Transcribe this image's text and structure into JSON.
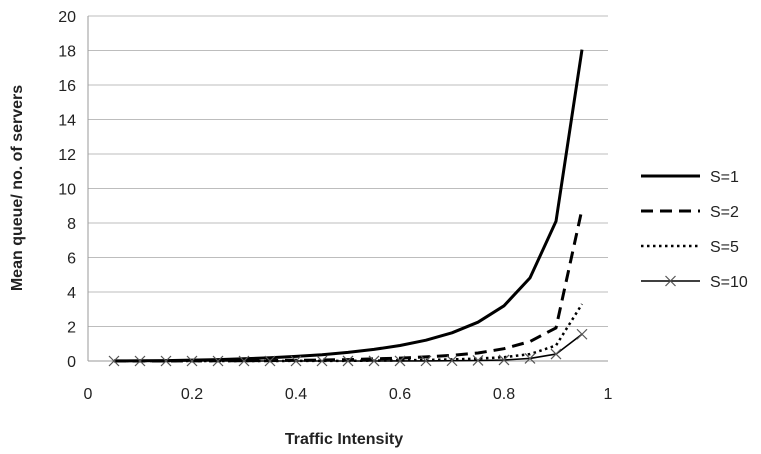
{
  "chart_data": {
    "type": "line",
    "xlabel": "Traffic Intensity",
    "ylabel": "Mean queue/ no. of servers",
    "xlim": [
      0,
      1
    ],
    "ylim": [
      0,
      20
    ],
    "xticks": [
      "0",
      "0.2",
      "0.4",
      "0.6",
      "0.8",
      "1"
    ],
    "xtick_values": [
      0,
      0.2,
      0.4,
      0.6,
      0.8,
      1
    ],
    "yticks": [
      "0",
      "2",
      "4",
      "6",
      "8",
      "10",
      "12",
      "14",
      "16",
      "18",
      "20"
    ],
    "ytick_values": [
      0,
      2,
      4,
      6,
      8,
      10,
      12,
      14,
      16,
      18,
      20
    ],
    "grid": "horizontal",
    "legend_position": "right",
    "x": [
      0.05,
      0.1,
      0.15,
      0.2,
      0.25,
      0.3,
      0.35,
      0.4,
      0.45,
      0.5,
      0.55,
      0.6,
      0.65,
      0.7,
      0.75,
      0.8,
      0.85,
      0.9,
      0.95
    ],
    "series": [
      {
        "name": "S=1",
        "style": "solid",
        "color": "#000000",
        "values": [
          0.003,
          0.011,
          0.026,
          0.05,
          0.083,
          0.129,
          0.188,
          0.267,
          0.368,
          0.5,
          0.672,
          0.9,
          1.207,
          1.633,
          2.25,
          3.2,
          4.817,
          8.1,
          18.05
        ]
      },
      {
        "name": "S=2",
        "style": "dashed",
        "color": "#000000",
        "values": [
          0.0,
          0.001,
          0.002,
          0.004,
          0.009,
          0.015,
          0.024,
          0.038,
          0.056,
          0.083,
          0.12,
          0.169,
          0.236,
          0.33,
          0.462,
          0.711,
          1.131,
          1.92,
          8.8
        ]
      },
      {
        "name": "S=5",
        "style": "dotted",
        "color": "#000000",
        "values": [
          0.0,
          0.0,
          0.0,
          0.0,
          0.0,
          0.001,
          0.002,
          0.004,
          0.007,
          0.013,
          0.022,
          0.036,
          0.057,
          0.09,
          0.14,
          0.22,
          0.4,
          0.9,
          3.3
        ]
      },
      {
        "name": "S=10",
        "style": "solid-x-markers",
        "color": "#000000",
        "values": [
          0.0,
          0.0,
          0.0,
          0.0,
          0.0,
          0.0,
          0.0,
          0.0,
          0.0,
          0.001,
          0.002,
          0.004,
          0.008,
          0.015,
          0.03,
          0.06,
          0.15,
          0.4,
          1.55
        ]
      }
    ]
  }
}
